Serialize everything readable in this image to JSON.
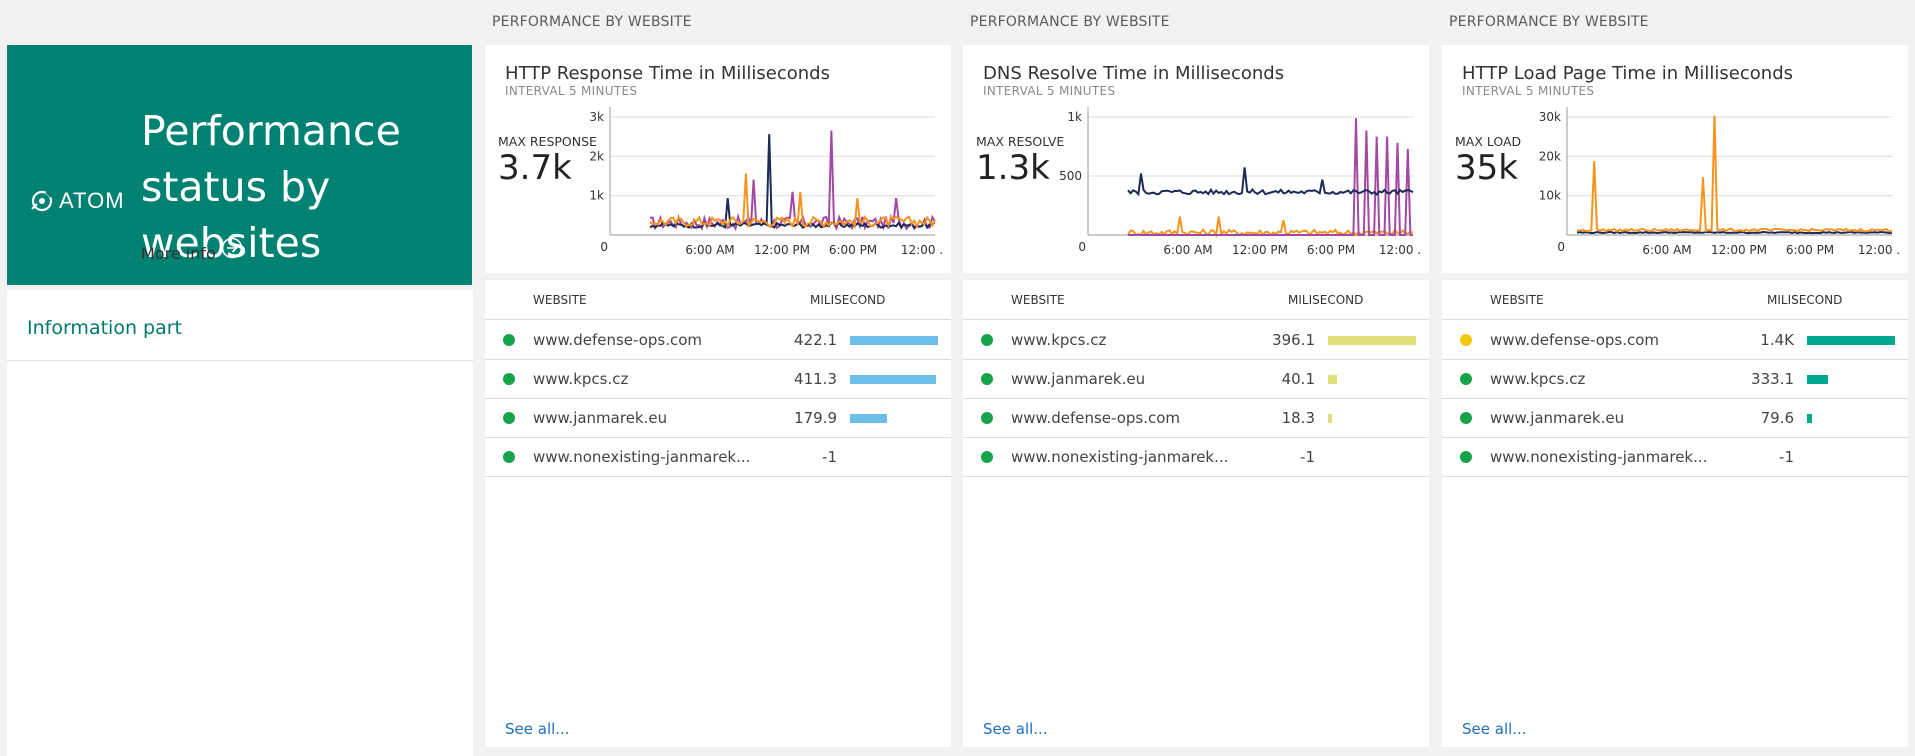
{
  "hero": {
    "logo_text": "ATOM",
    "title": "Performance status by websites",
    "more_info": "More info",
    "bg_color": "#008272"
  },
  "info_panel": {
    "title": "Information part"
  },
  "tiles": [
    {
      "section_label": "PERFORMANCE BY WEBSITE",
      "title": "HTTP Response Time in Milliseconds",
      "subtitle": "INTERVAL 5 MINUTES",
      "metric_label": "MAX RESPONSE",
      "metric_value": "3.7k",
      "columns": {
        "website": "WEBSITE",
        "ms": "MILISECOND"
      },
      "rows": [
        {
          "site": "www.defense-ops.com",
          "value": "422.1",
          "status_color": "#16a34a",
          "bar_fraction": 1.0,
          "bar_color": "#6cbfe8"
        },
        {
          "site": "www.kpcs.cz",
          "value": "411.3",
          "status_color": "#16a34a",
          "bar_fraction": 0.974,
          "bar_color": "#6cbfe8"
        },
        {
          "site": "www.janmarek.eu",
          "value": "179.9",
          "status_color": "#16a34a",
          "bar_fraction": 0.426,
          "bar_color": "#6cbfe8"
        },
        {
          "site": "www.nonexisting-janmarek...",
          "value": "-1",
          "status_color": "#16a34a",
          "bar_fraction": 0,
          "bar_color": "#6cbfe8"
        }
      ],
      "see_all": "See all...",
      "chart": {
        "y_ticks": [
          "0",
          "1k",
          "2k",
          "3k"
        ],
        "x_ticks": [
          "6:00 AM",
          "12:00 PM",
          "6:00 PM",
          "12:00 ."
        ]
      }
    },
    {
      "section_label": "PERFORMANCE BY WEBSITE",
      "title": "DNS Resolve Time in Milliseconds",
      "subtitle": "INTERVAL 5 MINUTES",
      "metric_label": "MAX RESOLVE",
      "metric_value": "1.3k",
      "columns": {
        "website": "WEBSITE",
        "ms": "MILISECOND"
      },
      "rows": [
        {
          "site": "www.kpcs.cz",
          "value": "396.1",
          "status_color": "#16a34a",
          "bar_fraction": 1.0,
          "bar_color": "#dede7a"
        },
        {
          "site": "www.janmarek.eu",
          "value": "40.1",
          "status_color": "#16a34a",
          "bar_fraction": 0.101,
          "bar_color": "#dede7a"
        },
        {
          "site": "www.defense-ops.com",
          "value": "18.3",
          "status_color": "#16a34a",
          "bar_fraction": 0.046,
          "bar_color": "#dede7a"
        },
        {
          "site": "www.nonexisting-janmarek...",
          "value": "-1",
          "status_color": "#16a34a",
          "bar_fraction": 0,
          "bar_color": "#dede7a"
        }
      ],
      "see_all": "See all...",
      "chart": {
        "y_ticks": [
          "0",
          "500",
          "1k"
        ],
        "x_ticks": [
          "6:00 AM",
          "12:00 PM",
          "6:00 PM",
          "12:00 ."
        ]
      }
    },
    {
      "section_label": "PERFORMANCE BY WEBSITE",
      "title": "HTTP Load Page Time in Milliseconds",
      "subtitle": "INTERVAL 5 MINUTES",
      "metric_label": "MAX LOAD",
      "metric_value": "35k",
      "columns": {
        "website": "WEBSITE",
        "ms": "MILISECOND"
      },
      "rows": [
        {
          "site": "www.defense-ops.com",
          "value": "1.4K",
          "status_color": "#f2c811",
          "bar_fraction": 1.0,
          "bar_color": "#00a88f"
        },
        {
          "site": "www.kpcs.cz",
          "value": "333.1",
          "status_color": "#16a34a",
          "bar_fraction": 0.238,
          "bar_color": "#00a88f"
        },
        {
          "site": "www.janmarek.eu",
          "value": "79.6",
          "status_color": "#16a34a",
          "bar_fraction": 0.057,
          "bar_color": "#00a88f"
        },
        {
          "site": "www.nonexisting-janmarek...",
          "value": "-1",
          "status_color": "#16a34a",
          "bar_fraction": 0,
          "bar_color": "#00a88f"
        }
      ],
      "see_all": "See all...",
      "chart": {
        "y_ticks": [
          "0",
          "10k",
          "20k",
          "30k"
        ],
        "x_ticks": [
          "6:00 AM",
          "12:00 PM",
          "6:00 PM",
          "12:00 ."
        ]
      }
    }
  ],
  "colors": {
    "series_navy": "#1b2a57",
    "series_orange": "#f7941d",
    "series_purple": "#a349a4",
    "link": "#1e6fbf"
  }
}
